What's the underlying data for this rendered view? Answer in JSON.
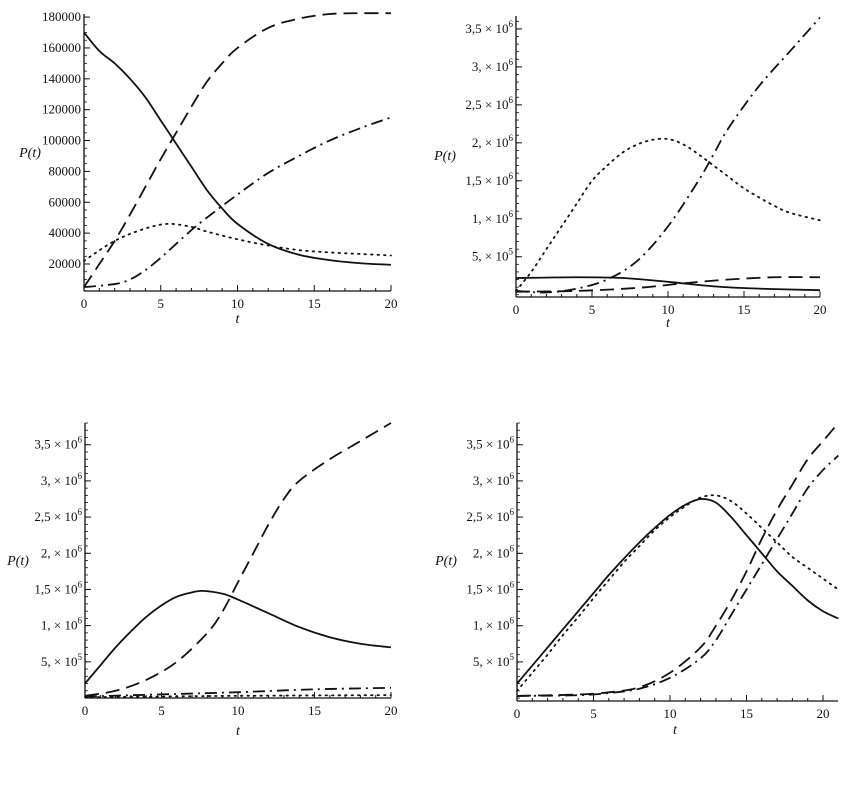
{
  "chart_data": [
    {
      "type": "line",
      "title": "",
      "xlabel": "t",
      "ylabel": "P(t)",
      "xlim": [
        0,
        20
      ],
      "ylim": [
        2500,
        182000
      ],
      "xticks": [
        0,
        5,
        10,
        15,
        20
      ],
      "yticks": [
        {
          "v": 20000,
          "text": "20000"
        },
        {
          "v": 40000,
          "text": "40000"
        },
        {
          "v": 60000,
          "text": "60000"
        },
        {
          "v": 80000,
          "text": "80000"
        },
        {
          "v": 100000,
          "text": "100000"
        },
        {
          "v": 120000,
          "text": "120000"
        },
        {
          "v": 140000,
          "text": "140000"
        },
        {
          "v": 160000,
          "text": "160000"
        },
        {
          "v": 180000,
          "text": "180000"
        }
      ],
      "series": [
        {
          "style": "solid",
          "x": [
            0,
            1,
            2,
            3,
            4,
            5,
            6,
            7,
            8,
            9,
            10,
            12,
            14,
            16,
            18,
            20
          ],
          "y": [
            170000,
            158000,
            150000,
            140000,
            128000,
            113000,
            98000,
            83000,
            68000,
            56000,
            46000,
            33000,
            26000,
            22500,
            20500,
            19500
          ]
        },
        {
          "style": "dashed",
          "x": [
            0,
            1,
            2,
            3,
            4,
            5,
            6,
            7,
            8,
            9,
            10,
            12,
            14,
            16,
            18,
            20
          ],
          "y": [
            5000,
            20000,
            35000,
            52000,
            70000,
            88000,
            105000,
            122000,
            138000,
            150000,
            160000,
            173000,
            179000,
            182000,
            182500,
            182500
          ]
        },
        {
          "style": "dashdot",
          "x": [
            0,
            2,
            3,
            4,
            5,
            6,
            7,
            8,
            10,
            12,
            14,
            16,
            18,
            20
          ],
          "y": [
            5000,
            7000,
            10000,
            16000,
            24000,
            33000,
            42000,
            50000,
            65000,
            79000,
            90000,
            100000,
            108000,
            115000
          ]
        },
        {
          "style": "dotted",
          "x": [
            0,
            2,
            4,
            5.5,
            7,
            8,
            10,
            12,
            14,
            16,
            18,
            20
          ],
          "y": [
            22000,
            35000,
            43000,
            46000,
            44000,
            41000,
            36000,
            32000,
            29000,
            27500,
            26500,
            25500
          ]
        }
      ]
    },
    {
      "type": "line",
      "title": "",
      "xlabel": "t",
      "ylabel": "P(t)",
      "xlim": [
        0,
        20
      ],
      "ylim": [
        -30000,
        3670000
      ],
      "xticks": [
        0,
        5,
        10,
        15,
        20
      ],
      "yticks": [
        {
          "v": 500000,
          "text": "5, × 10",
          "exp": "5"
        },
        {
          "v": 1000000,
          "text": "1, × 10",
          "exp": "6"
        },
        {
          "v": 1500000,
          "text": "1,5 × 10",
          "exp": "6"
        },
        {
          "v": 2000000,
          "text": "2, × 10",
          "exp": "6"
        },
        {
          "v": 2500000,
          "text": "2,5 × 10",
          "exp": "6"
        },
        {
          "v": 3000000,
          "text": "3, × 10",
          "exp": "6"
        },
        {
          "v": 3500000,
          "text": "3,5 × 10",
          "exp": "6"
        }
      ],
      "series": [
        {
          "style": "dotted",
          "x": [
            0,
            1,
            2,
            3,
            4,
            5,
            6,
            7,
            8,
            9,
            10,
            11,
            12,
            13,
            14,
            15,
            16,
            17,
            18,
            20
          ],
          "y": [
            50000,
            300000,
            600000,
            900000,
            1200000,
            1500000,
            1700000,
            1870000,
            1980000,
            2040000,
            2050000,
            1980000,
            1850000,
            1700000,
            1550000,
            1400000,
            1280000,
            1170000,
            1080000,
            980000
          ]
        },
        {
          "style": "dashdot",
          "x": [
            0,
            2,
            4,
            6,
            8,
            10,
            12,
            13,
            14,
            16,
            18,
            20
          ],
          "y": [
            50000,
            30000,
            80000,
            200000,
            450000,
            900000,
            1500000,
            1850000,
            2200000,
            2750000,
            3200000,
            3650000
          ]
        },
        {
          "style": "solid",
          "x": [
            0,
            4,
            7,
            10,
            13,
            16,
            20
          ],
          "y": [
            220000,
            230000,
            220000,
            170000,
            110000,
            80000,
            60000
          ]
        },
        {
          "style": "dashed",
          "x": [
            0,
            4,
            8,
            11,
            14,
            17,
            20
          ],
          "y": [
            40000,
            50000,
            90000,
            150000,
            200000,
            230000,
            230000
          ]
        }
      ]
    },
    {
      "type": "line",
      "title": "",
      "xlabel": "t",
      "ylabel": "P(t)",
      "xlim": [
        0,
        20
      ],
      "ylim": [
        0,
        3800000
      ],
      "xticks": [
        0,
        5,
        10,
        15,
        20
      ],
      "yticks": [
        {
          "v": 500000,
          "text": "5, × 10",
          "exp": "5"
        },
        {
          "v": 1000000,
          "text": "1, × 10",
          "exp": "6"
        },
        {
          "v": 1500000,
          "text": "1,5 × 10",
          "exp": "6"
        },
        {
          "v": 2000000,
          "text": "2, × 10",
          "exp": "6"
        },
        {
          "v": 2500000,
          "text": "2,5 × 10",
          "exp": "6"
        },
        {
          "v": 3000000,
          "text": "3, × 10",
          "exp": "6"
        },
        {
          "v": 3500000,
          "text": "3,5 × 10",
          "exp": "6"
        }
      ],
      "series": [
        {
          "style": "dashed",
          "x": [
            0,
            2,
            4,
            6,
            8,
            9,
            10,
            11,
            12,
            13,
            14,
            16,
            18,
            20
          ],
          "y": [
            30000,
            100000,
            250000,
            500000,
            900000,
            1200000,
            1600000,
            2000000,
            2400000,
            2750000,
            3000000,
            3300000,
            3550000,
            3800000
          ]
        },
        {
          "style": "solid",
          "x": [
            0,
            1,
            2,
            3,
            4,
            5,
            6,
            7,
            7.7,
            9,
            10,
            12,
            14,
            16,
            18,
            20
          ],
          "y": [
            200000,
            450000,
            700000,
            920000,
            1120000,
            1280000,
            1400000,
            1460000,
            1480000,
            1440000,
            1360000,
            1170000,
            980000,
            840000,
            750000,
            700000
          ]
        },
        {
          "style": "dashdot",
          "x": [
            0,
            5,
            10,
            15,
            20
          ],
          "y": [
            20000,
            50000,
            80000,
            120000,
            140000
          ]
        },
        {
          "style": "dotted",
          "x": [
            0,
            10,
            20
          ],
          "y": [
            10000,
            30000,
            40000
          ]
        }
      ]
    },
    {
      "type": "line",
      "title": "",
      "xlabel": "t",
      "ylabel": "P(t)",
      "xlim": [
        0,
        20
      ],
      "ylim": [
        -40000,
        3800000
      ],
      "xticks": [
        0,
        5,
        10,
        15,
        20
      ],
      "yticks": [
        {
          "v": 500000,
          "text": "5, × 10",
          "exp": "5"
        },
        {
          "v": 1000000,
          "text": "1, × 10",
          "exp": "6"
        },
        {
          "v": 1500000,
          "text": "1,5 × 10",
          "exp": "6"
        },
        {
          "v": 2000000,
          "text": "2, × 10",
          "exp": "6"
        },
        {
          "v": 2500000,
          "text": "2,5 × 10",
          "exp": "6"
        },
        {
          "v": 3000000,
          "text": "3, × 10",
          "exp": "6"
        },
        {
          "v": 3500000,
          "text": "3,5 × 10",
          "exp": "6"
        }
      ],
      "series": [
        {
          "style": "solid",
          "x": [
            0,
            1,
            2,
            3,
            4,
            5,
            6,
            7,
            8,
            9,
            10,
            11,
            12,
            13,
            14,
            15,
            16,
            17,
            18,
            19,
            20,
            21
          ],
          "y": [
            200000,
            450000,
            700000,
            950000,
            1200000,
            1450000,
            1700000,
            1930000,
            2150000,
            2350000,
            2530000,
            2670000,
            2750000,
            2700000,
            2500000,
            2250000,
            2000000,
            1750000,
            1550000,
            1350000,
            1200000,
            1100000
          ]
        },
        {
          "style": "dotted",
          "x": [
            0,
            1,
            2,
            3,
            4,
            5,
            6,
            7,
            8,
            9,
            10,
            11,
            12,
            13,
            14,
            15,
            16,
            17,
            18,
            19,
            20,
            21
          ],
          "y": [
            100000,
            350000,
            600000,
            870000,
            1120000,
            1380000,
            1630000,
            1880000,
            2100000,
            2320000,
            2500000,
            2650000,
            2770000,
            2800000,
            2720000,
            2550000,
            2350000,
            2150000,
            1950000,
            1800000,
            1650000,
            1500000
          ]
        },
        {
          "style": "dashed",
          "x": [
            0,
            4,
            6,
            8,
            10,
            12,
            13,
            14,
            15,
            16,
            17,
            18,
            19,
            20,
            21
          ],
          "y": [
            30000,
            50000,
            80000,
            150000,
            350000,
            700000,
            1000000,
            1350000,
            1750000,
            2200000,
            2600000,
            2950000,
            3300000,
            3550000,
            3800000
          ]
        },
        {
          "style": "dashdot",
          "x": [
            0,
            4,
            6,
            8,
            10,
            12,
            13,
            14,
            15,
            16,
            17,
            18,
            19,
            20,
            21
          ],
          "y": [
            30000,
            40000,
            70000,
            130000,
            280000,
            550000,
            800000,
            1150000,
            1500000,
            1850000,
            2200000,
            2550000,
            2900000,
            3150000,
            3350000
          ]
        }
      ]
    }
  ]
}
